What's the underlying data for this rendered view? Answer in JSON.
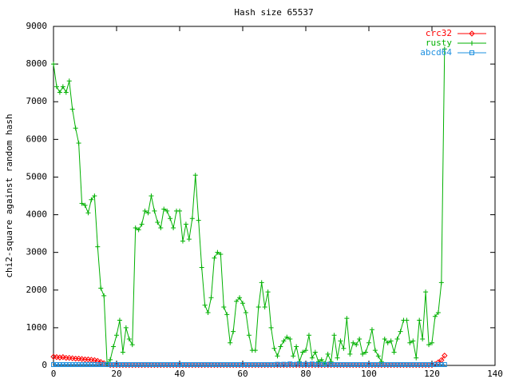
{
  "chart_data": {
    "type": "line",
    "title": "Hash size 65537",
    "ylabel": "chi2-square against random hash",
    "legend": "top right",
    "xlim": [
      0,
      140
    ],
    "xticks": [
      0,
      20,
      40,
      60,
      80,
      100,
      120,
      140
    ],
    "ylim": [
      0,
      9000
    ],
    "yticks": [
      0,
      1000,
      2000,
      3000,
      4000,
      5000,
      6000,
      7000,
      8000,
      9000
    ],
    "x": [
      0,
      1,
      2,
      3,
      4,
      5,
      6,
      7,
      8,
      9,
      10,
      11,
      12,
      13,
      14,
      15,
      16,
      17,
      18,
      19,
      20,
      21,
      22,
      23,
      24,
      25,
      26,
      27,
      28,
      29,
      30,
      31,
      32,
      33,
      34,
      35,
      36,
      37,
      38,
      39,
      40,
      41,
      42,
      43,
      44,
      45,
      46,
      47,
      48,
      49,
      50,
      51,
      52,
      53,
      54,
      55,
      56,
      57,
      58,
      59,
      60,
      61,
      62,
      63,
      64,
      65,
      66,
      67,
      68,
      69,
      70,
      71,
      72,
      73,
      74,
      75,
      76,
      77,
      78,
      79,
      80,
      81,
      82,
      83,
      84,
      85,
      86,
      87,
      88,
      89,
      90,
      91,
      92,
      93,
      94,
      95,
      96,
      97,
      98,
      99,
      100,
      101,
      102,
      103,
      104,
      105,
      106,
      107,
      108,
      109,
      110,
      111,
      112,
      113,
      114,
      115,
      116,
      117,
      118,
      119,
      120,
      121,
      122,
      123,
      124
    ],
    "series": [
      {
        "name": "crc32",
        "color": "#ff0000",
        "marker": "diamond",
        "values": [
          230,
          220,
          210,
          220,
          200,
          200,
          190,
          180,
          180,
          170,
          160,
          160,
          150,
          140,
          120,
          90,
          60,
          30,
          10,
          10,
          10,
          10,
          10,
          10,
          10,
          10,
          10,
          10,
          10,
          10,
          10,
          10,
          10,
          10,
          10,
          10,
          10,
          10,
          10,
          10,
          10,
          10,
          10,
          10,
          10,
          10,
          10,
          10,
          10,
          10,
          10,
          10,
          10,
          10,
          10,
          10,
          10,
          10,
          10,
          10,
          10,
          10,
          10,
          10,
          10,
          10,
          10,
          10,
          10,
          10,
          10,
          10,
          10,
          10,
          10,
          10,
          10,
          10,
          10,
          10,
          10,
          10,
          10,
          10,
          10,
          10,
          10,
          10,
          10,
          10,
          10,
          10,
          10,
          10,
          10,
          10,
          10,
          10,
          10,
          10,
          10,
          10,
          10,
          10,
          10,
          10,
          10,
          10,
          10,
          10,
          10,
          10,
          10,
          10,
          10,
          10,
          10,
          10,
          10,
          10,
          10,
          30,
          80,
          140,
          260
        ]
      },
      {
        "name": "rusty",
        "color": "#00b000",
        "marker": "plus",
        "values": [
          8000,
          7400,
          7250,
          7400,
          7250,
          7550,
          6800,
          6300,
          5900,
          4300,
          4250,
          4050,
          4400,
          4500,
          3150,
          2050,
          1850,
          50,
          150,
          500,
          800,
          1200,
          350,
          1000,
          700,
          550,
          3650,
          3600,
          3750,
          4100,
          4050,
          4500,
          4100,
          3800,
          3650,
          4150,
          4100,
          3900,
          3650,
          4100,
          4100,
          3300,
          3750,
          3350,
          3900,
          5050,
          3850,
          2600,
          1600,
          1400,
          1800,
          2850,
          3000,
          2950,
          1550,
          1350,
          600,
          900,
          1700,
          1800,
          1650,
          1400,
          800,
          400,
          400,
          1550,
          2200,
          1550,
          1950,
          1000,
          450,
          250,
          500,
          650,
          750,
          700,
          250,
          500,
          100,
          350,
          400,
          800,
          200,
          350,
          100,
          150,
          50,
          300,
          100,
          800,
          200,
          650,
          450,
          1250,
          300,
          600,
          550,
          700,
          300,
          350,
          600,
          950,
          400,
          250,
          100,
          700,
          600,
          650,
          350,
          700,
          900,
          1200,
          1200,
          600,
          650,
          200,
          1200,
          700,
          1950,
          550,
          600,
          1300,
          1400,
          2200,
          8400
        ]
      },
      {
        "name": "abcd64",
        "color": "#1e90e0",
        "marker": "square",
        "values": [
          20,
          20,
          20,
          20,
          20,
          20,
          20,
          20,
          20,
          20,
          20,
          20,
          20,
          20,
          20,
          20,
          20,
          20,
          20,
          20,
          20,
          20,
          20,
          20,
          20,
          20,
          20,
          20,
          20,
          20,
          20,
          20,
          20,
          20,
          20,
          20,
          20,
          20,
          20,
          20,
          20,
          20,
          20,
          20,
          20,
          20,
          20,
          20,
          20,
          20,
          20,
          20,
          20,
          20,
          20,
          20,
          20,
          20,
          20,
          20,
          20,
          20,
          20,
          20,
          20,
          20,
          20,
          20,
          20,
          20,
          20,
          30,
          20,
          30,
          20,
          40,
          20,
          30,
          40,
          20,
          30,
          20,
          40,
          20,
          30,
          20,
          20,
          30,
          20,
          20,
          20,
          20,
          20,
          20,
          20,
          20,
          20,
          20,
          20,
          20,
          20,
          20,
          20,
          20,
          20,
          20,
          20,
          20,
          20,
          20,
          20,
          20,
          20,
          20,
          20,
          20,
          20,
          20,
          20,
          20,
          20,
          20,
          20,
          20,
          20
        ]
      }
    ]
  }
}
